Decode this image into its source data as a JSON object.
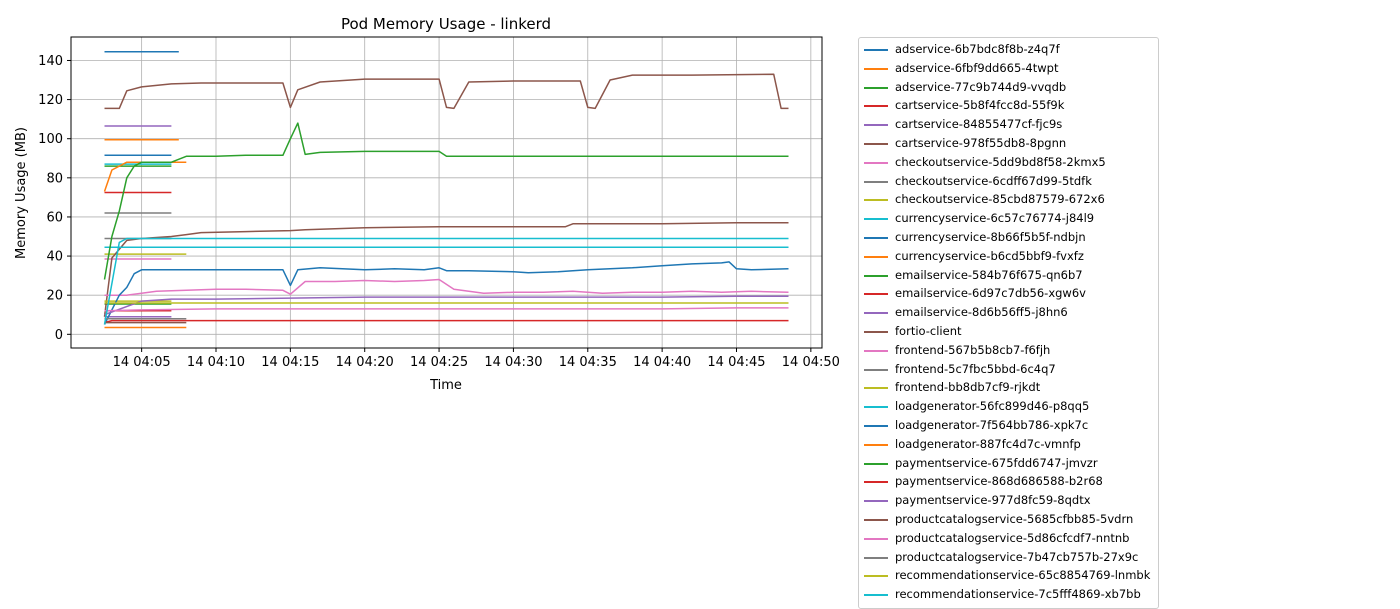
{
  "colors": [
    "#1f77b4",
    "#ff7f0e",
    "#2ca02c",
    "#d62728",
    "#9467bd",
    "#8c564b",
    "#e377c2",
    "#7f7f7f",
    "#bcbd22",
    "#17becf"
  ],
  "chart_data": {
    "type": "line",
    "title": "Pod Memory Usage - linkerd",
    "xlabel": "Time",
    "ylabel": "Memory Usage (MB)",
    "x_unit": "time (HH:MM on day 14)",
    "xlim": [
      "04:00:15",
      "04:50:45"
    ],
    "ylim": [
      -7,
      152
    ],
    "x_ticks": [
      "14 04:05",
      "14 04:10",
      "14 04:15",
      "14 04:20",
      "14 04:25",
      "14 04:30",
      "14 04:35",
      "14 04:40",
      "14 04:45",
      "14 04:50"
    ],
    "y_ticks": [
      0,
      20,
      40,
      60,
      80,
      100,
      120,
      140
    ],
    "grid": true,
    "legend_position": "outside-right",
    "series": [
      {
        "name": "adservice-6b7bdc8f8b-z4q7f",
        "x": [
          "04:02:30",
          "04:07:30"
        ],
        "y": [
          144.5,
          144.5
        ]
      },
      {
        "name": "adservice-6fbf9dd665-4twpt",
        "x": [
          "04:02:30",
          "04:07:30"
        ],
        "y": [
          99.5,
          99.5
        ]
      },
      {
        "name": "adservice-77c9b744d9-vvqdb",
        "x": [
          "04:02:30",
          "04:07:00"
        ],
        "y": [
          86,
          86
        ]
      },
      {
        "name": "cartservice-5b8f4fcc8d-55f9k",
        "x": [
          "04:02:30",
          "04:07:00"
        ],
        "y": [
          72.5,
          72.5
        ]
      },
      {
        "name": "cartservice-84855477cf-fjc9s",
        "x": [
          "04:02:30",
          "04:07:00"
        ],
        "y": [
          106.5,
          106.5
        ]
      },
      {
        "name": "cartservice-978f55db8-8pgnn",
        "x": [
          "04:02:30",
          "04:03:30",
          "04:04:00",
          "04:05:00",
          "04:07:00",
          "04:09:00",
          "04:11:00",
          "04:14:30",
          "04:15:00",
          "04:15:30",
          "04:17:00",
          "04:20:00",
          "04:25:00",
          "04:25:30",
          "04:26:00",
          "04:27:00",
          "04:30:00",
          "04:34:30",
          "04:35:00",
          "04:35:30",
          "04:36:30",
          "04:38:00",
          "04:42:00",
          "04:47:30",
          "04:48:00",
          "04:48:30"
        ],
        "y": [
          115.5,
          115.5,
          124.5,
          126.5,
          128,
          128.5,
          128.5,
          128.5,
          116,
          125,
          129,
          130.5,
          130.5,
          116,
          115.5,
          129,
          129.5,
          129.5,
          116,
          115.5,
          130,
          132.5,
          132.5,
          133,
          115.5,
          115.5
        ]
      },
      {
        "name": "checkoutservice-5dd9bd8f58-2kmx5",
        "x": [
          "04:02:30",
          "04:07:00"
        ],
        "y": [
          38.5,
          38.5
        ]
      },
      {
        "name": "checkoutservice-6cdff67d99-5tdfk",
        "x": [
          "04:02:30",
          "04:07:00"
        ],
        "y": [
          62,
          62
        ]
      },
      {
        "name": "checkoutservice-85cbd87579-672x6",
        "x": [
          "04:02:30",
          "04:08:00"
        ],
        "y": [
          41,
          41
        ]
      },
      {
        "name": "currencyservice-6c57c76774-j84l9",
        "x": [
          "04:02:30",
          "04:07:00"
        ],
        "y": [
          87,
          87
        ]
      },
      {
        "name": "currencyservice-8b66f5b5f-ndbjn",
        "x": [
          "04:02:30",
          "04:07:00"
        ],
        "y": [
          91.5,
          91.5
        ]
      },
      {
        "name": "currencyservice-b6cd5bbf9-fvxfz",
        "x": [
          "04:02:30",
          "04:08:00"
        ],
        "y": [
          3.5,
          3.5
        ]
      },
      {
        "name": "emailservice-584b76f675-qn6b7",
        "x": [
          "04:02:30",
          "04:07:00"
        ],
        "y": [
          15.5,
          15.5
        ]
      },
      {
        "name": "emailservice-6d97c7db56-xgw6v",
        "x": [
          "04:02:30",
          "04:07:00"
        ],
        "y": [
          12,
          12
        ]
      },
      {
        "name": "emailservice-8d6b56ff5-j8hn6",
        "x": [
          "04:02:30",
          "04:07:00"
        ],
        "y": [
          9,
          9
        ]
      },
      {
        "name": "fortio-client",
        "x": [
          "04:02:30",
          "04:03:00",
          "04:04:00",
          "04:05:00",
          "04:07:00",
          "04:08:00",
          "04:09:00",
          "04:12:00",
          "04:15:00",
          "04:16:00",
          "04:20:00",
          "04:25:00",
          "04:30:00",
          "04:33:30",
          "04:34:00",
          "04:40:00",
          "04:45:00",
          "04:48:30"
        ],
        "y": [
          9,
          39,
          48,
          49,
          50,
          51,
          52,
          52.5,
          53,
          53.5,
          54.5,
          55,
          55,
          55,
          56.5,
          56.5,
          57,
          57
        ]
      },
      {
        "name": "frontend-567b5b8cb7-f6fjh",
        "x": [
          "04:02:30",
          "04:04:00",
          "04:05:00",
          "04:06:00",
          "04:08:00",
          "04:10:00",
          "04:12:00",
          "04:14:30",
          "04:15:00",
          "04:16:00",
          "04:18:00",
          "04:20:00",
          "04:22:00",
          "04:24:00",
          "04:25:00",
          "04:26:00",
          "04:28:00",
          "04:30:00",
          "04:32:00",
          "04:34:00",
          "04:36:00",
          "04:38:00",
          "04:40:00",
          "04:42:00",
          "04:44:00",
          "04:46:00",
          "04:48:30"
        ],
        "y": [
          20,
          20,
          21,
          22,
          22.5,
          23,
          23,
          22.5,
          20.5,
          27,
          27,
          27.5,
          27,
          27.5,
          28,
          23,
          21,
          21.5,
          21.5,
          22,
          21,
          21.5,
          21.5,
          22,
          21.5,
          22,
          21.5
        ]
      },
      {
        "name": "frontend-5c7fbc5bbd-6c4q7",
        "x": [
          "04:02:30",
          "04:07:00"
        ],
        "y": [
          49,
          49
        ]
      },
      {
        "name": "frontend-bb8db7cf9-rjkdt",
        "x": [
          "04:02:30",
          "04:07:00"
        ],
        "y": [
          17,
          17
        ]
      },
      {
        "name": "loadgenerator-56fc899d46-p8qq5",
        "x": [
          "04:02:30",
          "04:03:30",
          "04:04:00",
          "04:05:00",
          "04:10:00",
          "04:20:00",
          "04:30:00",
          "04:40:00",
          "04:48:30"
        ],
        "y": [
          44.5,
          44.5,
          44.5,
          44.5,
          44.5,
          44.5,
          44.5,
          44.5,
          44.5
        ]
      },
      {
        "name": "loadgenerator-7f564bb786-xpk7c",
        "x": [
          "04:02:30",
          "04:03:30",
          "04:04:00",
          "04:04:30",
          "04:05:00",
          "04:06:00",
          "04:08:00",
          "04:10:00",
          "04:12:00",
          "04:14:30",
          "04:15:00",
          "04:15:30",
          "04:17:00",
          "04:20:00",
          "04:22:00",
          "04:24:00",
          "04:25:00",
          "04:25:30",
          "04:27:00",
          "04:30:00",
          "04:31:00",
          "04:33:00",
          "04:35:00",
          "04:38:00",
          "04:40:00",
          "04:42:00",
          "04:44:00",
          "04:44:30",
          "04:45:00",
          "04:46:00",
          "04:48:30"
        ],
        "y": [
          5,
          20,
          24,
          31,
          33,
          33,
          33,
          33,
          33,
          33,
          25,
          33,
          34,
          33,
          33.5,
          33,
          34,
          32.5,
          32.5,
          32,
          31.5,
          32,
          33,
          34,
          35,
          36,
          36.5,
          37,
          33.5,
          33,
          33.5
        ]
      },
      {
        "name": "loadgenerator-887fc4d7c-vmnfp",
        "x": [
          "04:02:30",
          "04:03:00",
          "04:04:00",
          "04:08:00"
        ],
        "y": [
          73,
          84,
          88,
          88
        ]
      },
      {
        "name": "paymentservice-675fdd6747-jmvzr",
        "x": [
          "04:02:30",
          "04:03:00",
          "04:03:30",
          "04:04:00",
          "04:04:30",
          "04:05:00",
          "04:06:00",
          "04:07:00",
          "04:08:00",
          "04:10:00",
          "04:12:00",
          "04:14:30",
          "04:15:00",
          "04:15:30",
          "04:16:00",
          "04:17:00",
          "04:20:00",
          "04:25:00",
          "04:25:30",
          "04:30:00",
          "04:40:00",
          "04:48:30"
        ],
        "y": [
          28,
          50,
          63,
          80,
          86,
          88,
          88,
          88,
          91,
          91,
          91.5,
          91.5,
          100,
          108,
          92,
          93,
          93.5,
          93.5,
          91,
          91,
          91,
          91
        ]
      },
      {
        "name": "paymentservice-868d686588-b2r68",
        "x": [
          "04:02:30",
          "04:03:00",
          "04:05:00",
          "04:10:00",
          "04:20:00",
          "04:30:00",
          "04:40:00",
          "04:48:30"
        ],
        "y": [
          6,
          7,
          7,
          7,
          7,
          7,
          7,
          7
        ]
      },
      {
        "name": "paymentservice-977d8fc59-8qdtx",
        "x": [
          "04:02:30",
          "04:05:00",
          "04:07:00",
          "04:10:00",
          "04:15:00",
          "04:20:00",
          "04:25:00",
          "04:30:00",
          "04:35:00",
          "04:40:00",
          "04:45:00",
          "04:48:30"
        ],
        "y": [
          10,
          17,
          18,
          18,
          18.5,
          19,
          19,
          19,
          19,
          19,
          19.5,
          19.5
        ]
      },
      {
        "name": "productcatalogservice-5685cfbb85-5vdrn",
        "x": [
          "04:02:30",
          "04:08:00"
        ],
        "y": [
          6,
          6
        ]
      },
      {
        "name": "productcatalogservice-5d86cfcdf7-nntnb",
        "x": [
          "04:02:30",
          "04:05:00",
          "04:10:00",
          "04:15:00",
          "04:20:00",
          "04:25:00",
          "04:30:00",
          "04:35:00",
          "04:40:00",
          "04:45:00",
          "04:48:30"
        ],
        "y": [
          12,
          12.5,
          13,
          13,
          13,
          13,
          13,
          13,
          13,
          13.5,
          13.5
        ]
      },
      {
        "name": "productcatalogservice-7b47cb757b-27x9c",
        "x": [
          "04:02:30",
          "04:08:00"
        ],
        "y": [
          8,
          8
        ]
      },
      {
        "name": "recommendationservice-65c8854769-lnmbk",
        "x": [
          "04:02:30",
          "04:05:00",
          "04:10:00",
          "04:20:00",
          "04:30:00",
          "04:40:00",
          "04:48:30"
        ],
        "y": [
          16,
          16,
          16,
          16,
          16,
          16,
          16
        ]
      },
      {
        "name": "recommendationservice-7c5fff4869-xb7bb",
        "x": [
          "04:02:30",
          "04:03:30",
          "04:04:00",
          "04:10:00",
          "04:20:00",
          "04:30:00",
          "04:40:00",
          "04:48:30"
        ],
        "y": [
          5,
          47,
          49,
          49,
          49,
          49,
          49,
          49
        ]
      }
    ]
  }
}
